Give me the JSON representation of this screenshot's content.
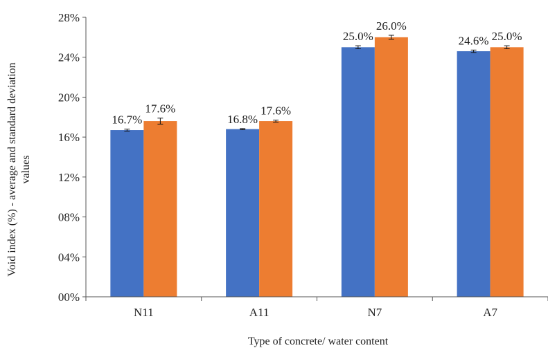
{
  "chart_data": {
    "type": "bar",
    "categories": [
      "N11",
      "A11",
      "N7",
      "A7"
    ],
    "series": [
      {
        "values": [
          16.7,
          16.8,
          25.0,
          24.6
        ],
        "labels": [
          "16.7%",
          "16.8%",
          "25.0%",
          "24.6%"
        ],
        "errors": [
          0.1,
          0.05,
          0.15,
          0.12
        ],
        "color": "#4472C4"
      },
      {
        "values": [
          17.6,
          17.6,
          26.0,
          25.0
        ],
        "labels": [
          "17.6%",
          "17.6%",
          "26.0%",
          "25.0%"
        ],
        "errors": [
          0.3,
          0.1,
          0.2,
          0.15
        ],
        "color": "#ED7D31"
      }
    ],
    "xlabel": "Type of concrete/ water content",
    "ylabel_line1": "Void index  (%)  -  average and standard deviation",
    "ylabel_line2": "values",
    "ylim": [
      0,
      28
    ],
    "yticks": [
      0,
      4,
      8,
      12,
      16,
      20,
      24,
      28
    ],
    "ytick_labels": [
      "00%",
      "04%",
      "08%",
      "12%",
      "16%",
      "20%",
      "24%",
      "28%"
    ],
    "grid": false,
    "legend": "none"
  }
}
